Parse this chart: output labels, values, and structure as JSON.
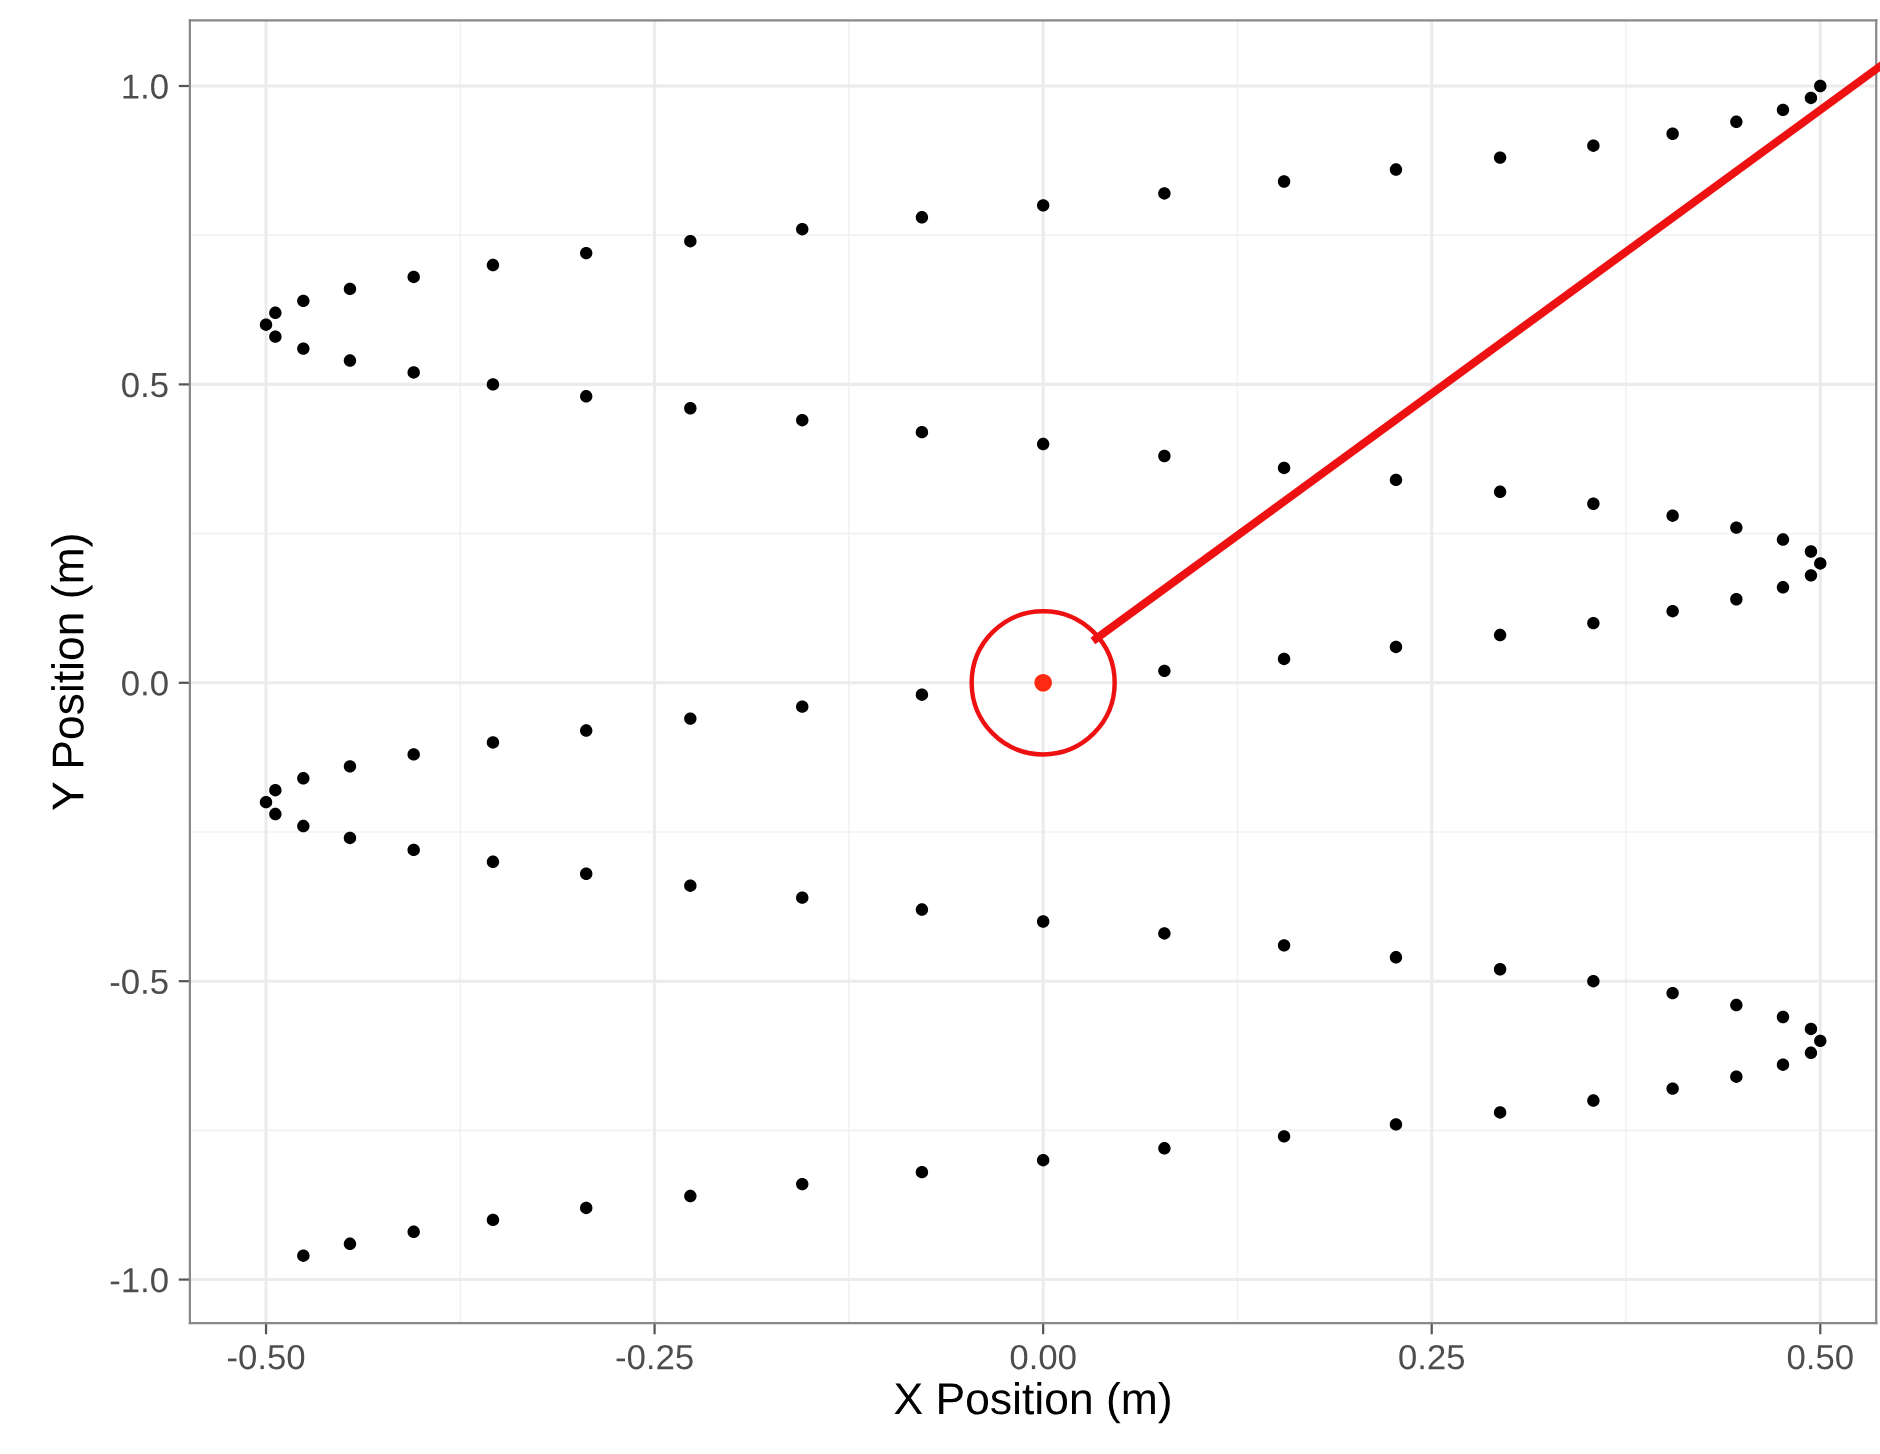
{
  "chart_data": {
    "type": "scatter",
    "xlabel": "X Position (m)",
    "ylabel": "Y Position (m)",
    "series": [
      {
        "color": "#000000",
        "x": [
          -0.476,
          -0.446,
          -0.405,
          -0.354,
          -0.294,
          -0.227,
          -0.155,
          -0.078,
          0,
          0.078,
          0.155,
          0.227,
          0.294,
          0.354,
          0.405,
          0.446,
          0.476,
          0.494,
          0.5,
          0.494,
          0.476,
          0.446,
          0.405,
          0.354,
          0.294,
          0.227,
          0.155,
          0.078,
          0,
          -0.078,
          -0.155,
          -0.227,
          -0.294,
          -0.354,
          -0.405,
          -0.446,
          -0.476,
          -0.494,
          -0.5,
          -0.494,
          -0.476,
          -0.446,
          -0.405,
          -0.354,
          -0.294,
          -0.227,
          -0.155,
          -0.078,
          0,
          0.078,
          0.155,
          0.227,
          0.294,
          0.354,
          0.405,
          0.446,
          0.476,
          0.494,
          0.5,
          0.494,
          0.476,
          0.446,
          0.405,
          0.354,
          0.294,
          0.227,
          0.155,
          0.078,
          0,
          -0.078,
          -0.155,
          -0.227,
          -0.294,
          -0.354,
          -0.405,
          -0.446,
          -0.476,
          -0.494,
          -0.5,
          -0.494,
          -0.476,
          -0.446,
          -0.405,
          -0.354,
          -0.294,
          -0.227,
          -0.155,
          -0.078,
          0,
          0.078,
          0.155,
          0.227,
          0.294,
          0.354,
          0.405,
          0.446,
          0.476,
          0.494,
          0.5
        ],
        "values": [
          -0.96,
          -0.94,
          -0.92,
          -0.9,
          -0.88,
          -0.86,
          -0.84,
          -0.82,
          -0.8,
          -0.78,
          -0.76,
          -0.74,
          -0.72,
          -0.7,
          -0.68,
          -0.66,
          -0.64,
          -0.62,
          -0.6,
          -0.58,
          -0.56,
          -0.54,
          -0.52,
          -0.5,
          -0.48,
          -0.46,
          -0.44,
          -0.42,
          -0.4,
          -0.38,
          -0.36,
          -0.34,
          -0.32,
          -0.3,
          -0.28,
          -0.26,
          -0.24,
          -0.22,
          -0.2,
          -0.18,
          -0.16,
          -0.14,
          -0.12,
          -0.1,
          -0.08,
          -0.06,
          -0.04,
          -0.02,
          0,
          0.02,
          0.04,
          0.06,
          0.08,
          0.1,
          0.12,
          0.14,
          0.16,
          0.18,
          0.2,
          0.22,
          0.24,
          0.26,
          0.28,
          0.3,
          0.32,
          0.34,
          0.36,
          0.38,
          0.4,
          0.42,
          0.44,
          0.46,
          0.48,
          0.5,
          0.52,
          0.54,
          0.56,
          0.58,
          0.6,
          0.62,
          0.64,
          0.66,
          0.68,
          0.7,
          0.72,
          0.74,
          0.76,
          0.78,
          0.8,
          0.82,
          0.84,
          0.86,
          0.88,
          0.9,
          0.92,
          0.94,
          0.96,
          0.98,
          1.0
        ]
      },
      {
        "color": "#ff2a12",
        "x": [
          0
        ],
        "values": [
          0
        ]
      }
    ],
    "xlim": [
      -0.549,
      0.536
    ],
    "ylim": [
      -1.073,
      1.11
    ],
    "xticks": [
      {
        "value": -0.5,
        "label": "-0.50"
      },
      {
        "value": -0.25,
        "label": "-0.25"
      },
      {
        "value": 0,
        "label": "0.00"
      },
      {
        "value": 0.25,
        "label": "0.25"
      },
      {
        "value": 0.5,
        "label": "0.50"
      }
    ],
    "yticks": [
      {
        "value": -1,
        "label": "-1.0"
      },
      {
        "value": -0.5,
        "label": "-0.5"
      },
      {
        "value": 0,
        "label": "0.0"
      },
      {
        "value": 0.5,
        "label": "0.5"
      },
      {
        "value": 1,
        "label": "1.0"
      }
    ],
    "grid": true,
    "marker": "circle"
  }
}
